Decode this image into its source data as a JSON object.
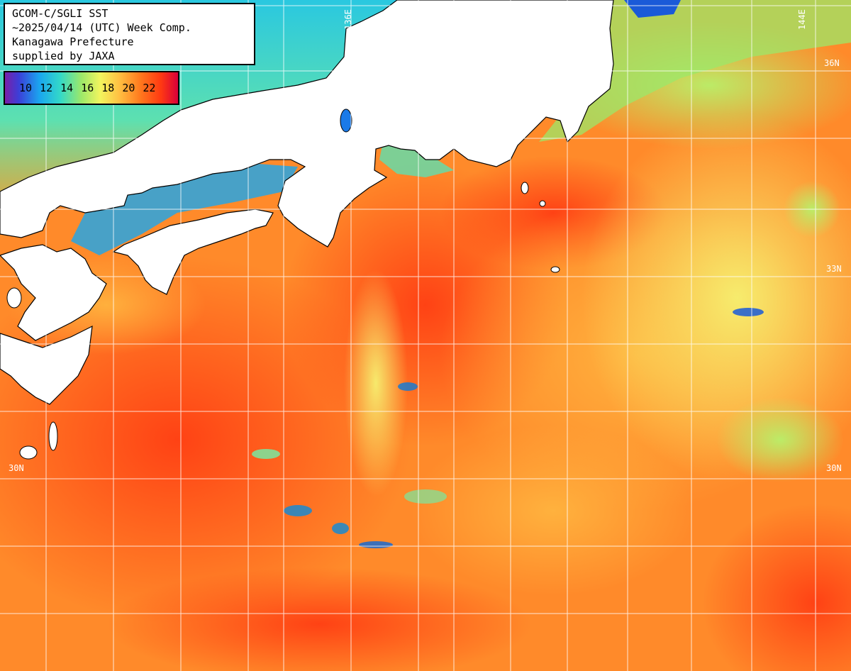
{
  "title": {
    "line1": "GCOM-C/SGLI SST",
    "line2": "~2025/04/14 (UTC) Week Comp.",
    "line3": "Kanagawa Prefecture",
    "line4": "supplied by JAXA"
  },
  "legend": {
    "ticks": [
      "10",
      "12",
      "14",
      "16",
      "18",
      "20",
      "22"
    ]
  },
  "grid_labels": {
    "lon_136": "136E",
    "lon_144": "144E",
    "lat_36": "36N",
    "lat_33": "33N",
    "lat_30_left": "30N",
    "lat_30_right": "30N"
  },
  "colors": {
    "land": "#ffffff",
    "coast": "#000000",
    "grid": "#ffffff",
    "cold": "#1aa6ef",
    "mild": "#f2f55e",
    "warm": "#ff7a1e",
    "hot": "#ff3a12"
  }
}
